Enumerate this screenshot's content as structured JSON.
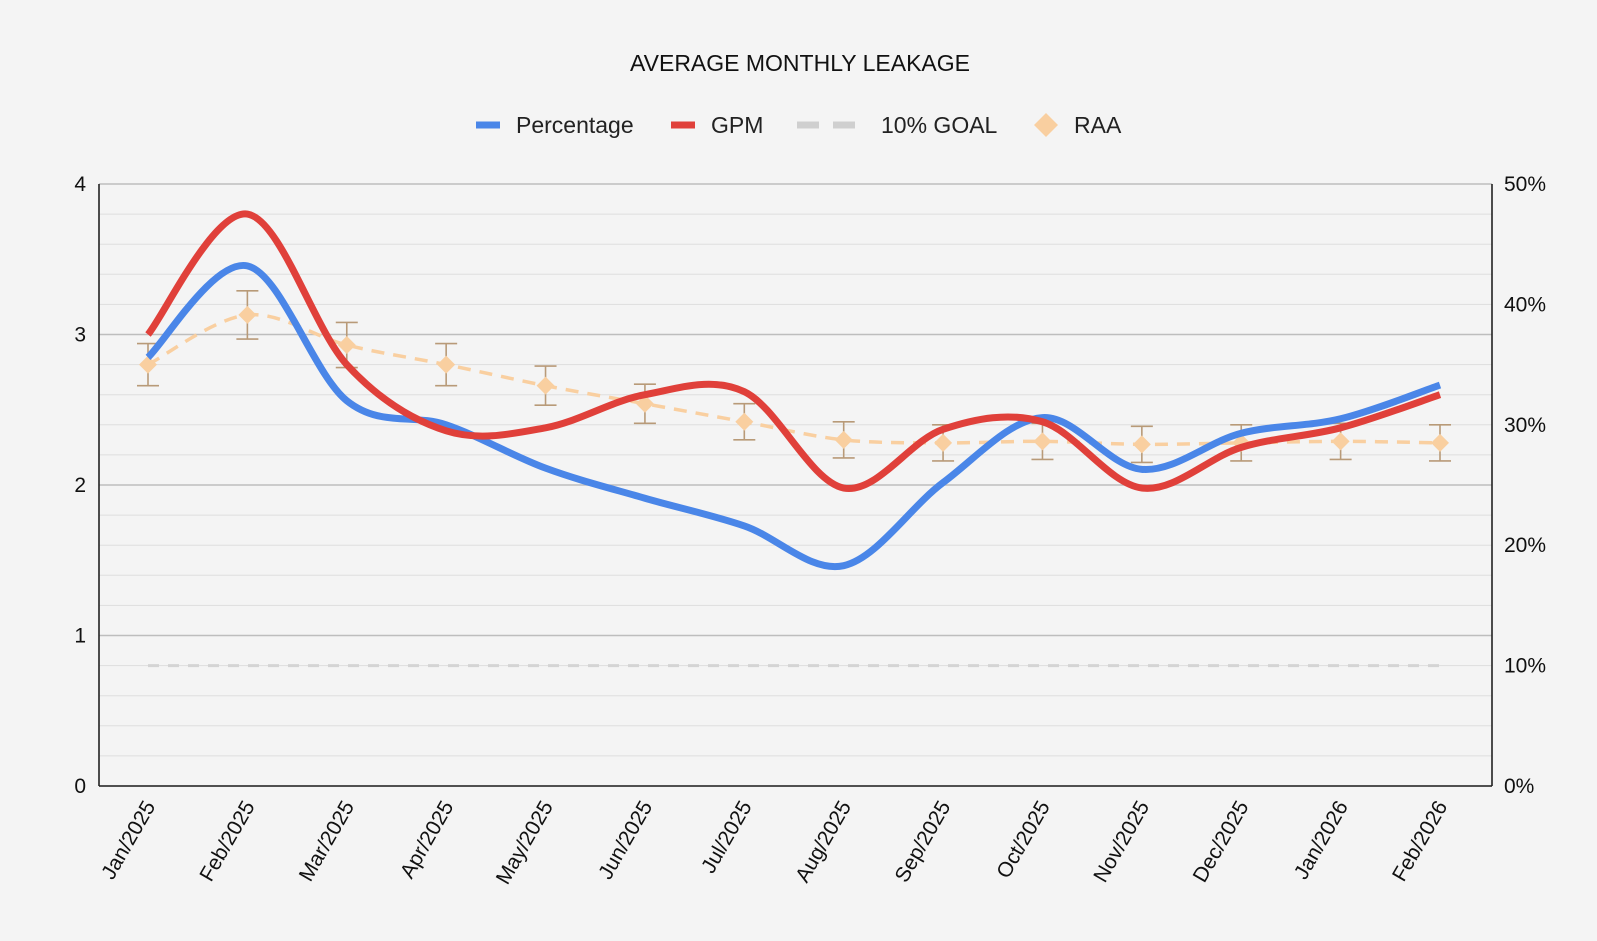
{
  "chart_data": {
    "type": "line",
    "title": "AVERAGE MONTHLY LEAKAGE",
    "categories": [
      "Jan/2025",
      "Feb/2025",
      "Mar/2025",
      "Apr/2025",
      "May/2025",
      "Jun/2025",
      "Jul/2025",
      "Aug/2025",
      "Sep/2025",
      "Oct/2025",
      "Nov/2025",
      "Dec/2025",
      "Jan/2026",
      "Feb/2026"
    ],
    "left_axis": {
      "ylim": [
        0,
        4
      ],
      "ticks": [
        "0",
        "1",
        "2",
        "3",
        "4"
      ]
    },
    "right_axis": {
      "ylim": [
        0,
        50
      ],
      "ticks": [
        "0%",
        "10%",
        "20%",
        "30%",
        "40%",
        "50%"
      ]
    },
    "series": [
      {
        "name": "Percentage",
        "axis": "right",
        "style": "smooth-line",
        "color": "#4a86e8",
        "values": [
          35.6,
          43.2,
          32.0,
          30.0,
          26.4,
          23.9,
          21.6,
          18.3,
          25.2,
          30.6,
          26.3,
          29.3,
          30.5,
          33.3
        ]
      },
      {
        "name": "GPM",
        "axis": "left",
        "style": "smooth-line",
        "color": "#e0403a",
        "values": [
          3.0,
          3.8,
          2.8,
          2.36,
          2.38,
          2.6,
          2.62,
          1.98,
          2.37,
          2.42,
          1.98,
          2.25,
          2.38,
          2.6
        ]
      },
      {
        "name": "10% GOAL",
        "axis": "right",
        "style": "dashed-line",
        "color": "#d4d4d4",
        "values": [
          10,
          10,
          10,
          10,
          10,
          10,
          10,
          10,
          10,
          10,
          10,
          10,
          10,
          10
        ]
      },
      {
        "name": "RAA",
        "axis": "left",
        "style": "diamond-dashed-errorbars",
        "color": "#f9cfa0",
        "values": [
          2.8,
          3.13,
          2.93,
          2.8,
          2.66,
          2.54,
          2.42,
          2.3,
          2.28,
          2.29,
          2.27,
          2.28,
          2.29,
          2.28
        ],
        "error": [
          0.14,
          0.16,
          0.15,
          0.14,
          0.13,
          0.13,
          0.12,
          0.12,
          0.12,
          0.12,
          0.12,
          0.12,
          0.12,
          0.12
        ],
        "errorbar_color": "#b89a78"
      }
    ],
    "legend": {
      "position": "top"
    },
    "gridlines": true
  }
}
